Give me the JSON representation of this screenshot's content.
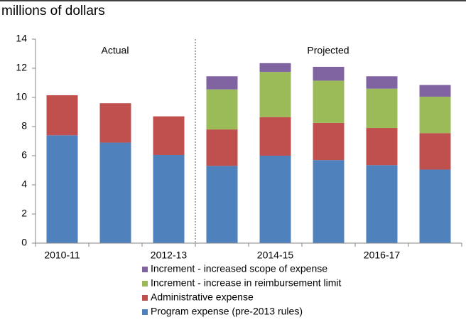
{
  "chart_data": {
    "type": "stacked_bar",
    "title": "millions of dollars",
    "annotations": [
      "Actual",
      "Projected"
    ],
    "categories": [
      "2010-11",
      null,
      "2012-13",
      null,
      "2014-15",
      null,
      "2016-17",
      null
    ],
    "series": [
      {
        "name": "Program expense (pre-2013 rules)",
        "color": "#4f81bd",
        "values": [
          7.4,
          6.9,
          6.05,
          5.3,
          6.0,
          5.7,
          5.35,
          5.05
        ]
      },
      {
        "name": "Administrative expense",
        "color": "#c0504d",
        "values": [
          2.75,
          2.7,
          2.65,
          2.5,
          2.65,
          2.55,
          2.55,
          2.5
        ]
      },
      {
        "name": "Increment - increase in reimbursement limit",
        "color": "#9bbb59",
        "values": [
          null,
          null,
          null,
          2.75,
          3.1,
          2.9,
          2.7,
          2.5
        ]
      },
      {
        "name": "Increment - increased scope of expense",
        "color": "#8064a2",
        "values": [
          null,
          null,
          null,
          0.9,
          0.6,
          0.95,
          0.85,
          0.8
        ]
      }
    ],
    "ylim": [
      0,
      14
    ],
    "yticks": [
      0,
      2,
      4,
      6,
      8,
      10,
      12,
      14
    ],
    "legend": "bottom"
  }
}
